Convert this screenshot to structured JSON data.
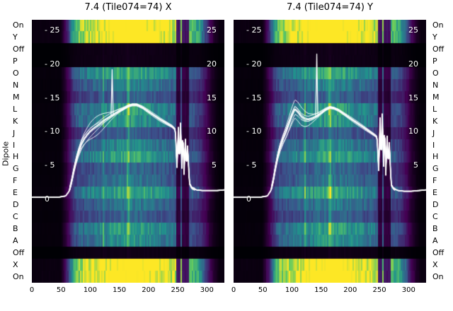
{
  "chart_data": {
    "type": "heatmap+line",
    "ylabel": "Dipole",
    "x_range": [
      0,
      330
    ],
    "x_ticks": [
      0,
      50,
      100,
      150,
      200,
      250,
      300
    ],
    "inner_axis": {
      "left_ticks": [
        25,
        20,
        15,
        10,
        5,
        0
      ],
      "right_ticks": [
        25,
        20,
        15,
        10,
        5
      ],
      "range": [
        0,
        27
      ]
    },
    "rows": [
      {
        "label": "On",
        "kind": "bright"
      },
      {
        "label": "Y",
        "kind": "bright"
      },
      {
        "label": "Off",
        "kind": "dark"
      },
      {
        "label": "P",
        "kind": "dark"
      },
      {
        "label": "O",
        "kind": "active"
      },
      {
        "label": "N",
        "kind": "active"
      },
      {
        "label": "M",
        "kind": "active"
      },
      {
        "label": "L",
        "kind": "active"
      },
      {
        "label": "K",
        "kind": "active"
      },
      {
        "label": "J",
        "kind": "active"
      },
      {
        "label": "I",
        "kind": "active"
      },
      {
        "label": "H",
        "kind": "active"
      },
      {
        "label": "G",
        "kind": "active"
      },
      {
        "label": "F",
        "kind": "active"
      },
      {
        "label": "E",
        "kind": "active"
      },
      {
        "label": "D",
        "kind": "active"
      },
      {
        "label": "C",
        "kind": "active"
      },
      {
        "label": "B",
        "kind": "active"
      },
      {
        "label": "A",
        "kind": "active"
      },
      {
        "label": "Off",
        "kind": "dark"
      },
      {
        "label": "X",
        "kind": "bright"
      },
      {
        "label": "On",
        "kind": "bright"
      }
    ],
    "colormap": [
      {
        "pos": 0.0,
        "color": "#000004"
      },
      {
        "pos": 0.18,
        "color": "#440154"
      },
      {
        "pos": 0.42,
        "color": "#3b528b"
      },
      {
        "pos": 0.62,
        "color": "#21918c"
      },
      {
        "pos": 0.8,
        "color": "#5ec962"
      },
      {
        "pos": 1.0,
        "color": "#fde725"
      }
    ],
    "colors": {
      "background": "#ffffff",
      "axis_text": "#000000",
      "inner_tick_text": "#ffffff",
      "line": "#ffffff"
    },
    "bg_profile": {
      "x": [
        0,
        48,
        54,
        60,
        66,
        72,
        80,
        95,
        110,
        130,
        150,
        170,
        190,
        210,
        230,
        243,
        252,
        262,
        272,
        285,
        295,
        303,
        312,
        320,
        330
      ],
      "v": [
        0.02,
        0.02,
        0.1,
        0.22,
        0.4,
        0.55,
        0.63,
        0.68,
        0.72,
        0.78,
        0.84,
        0.86,
        0.82,
        0.77,
        0.72,
        0.68,
        0.6,
        0.58,
        0.56,
        0.5,
        0.32,
        0.16,
        0.06,
        0.02,
        0.02
      ]
    },
    "dark_stripes": [
      {
        "x": 248,
        "w": 2.0
      },
      {
        "x": 253,
        "w": 1.5
      },
      {
        "x": 258,
        "w": 2.0
      },
      {
        "x": 263,
        "w": 1.5
      },
      {
        "x": 267,
        "w": 1.5
      }
    ],
    "dark_stripes_factor": 0.3,
    "bright_stripes": [
      {
        "x": 122,
        "w": 1.5
      },
      {
        "x": 164,
        "w": 2.0
      }
    ],
    "bright_stripes_factor": 1.3,
    "panels": [
      {
        "title": "7.4 (Tile074=74) X",
        "line": {
          "x": [
            0,
            45,
            58,
            64,
            68,
            72,
            76,
            80,
            85,
            90,
            95,
            100,
            107,
            115,
            123,
            130,
            137,
            144,
            150,
            157,
            165,
            172,
            180,
            190,
            200,
            210,
            220,
            230,
            240,
            246,
            249,
            251,
            253,
            255,
            257,
            259,
            261,
            263,
            265,
            267,
            270,
            274,
            282,
            292,
            305,
            318,
            330
          ],
          "v": [
            0.3,
            0.3,
            0.5,
            1.2,
            2.6,
            4.3,
            5.8,
            7.0,
            8.2,
            9.0,
            9.6,
            10.1,
            10.6,
            11.1,
            11.6,
            12.0,
            12.4,
            12.8,
            13.1,
            13.4,
            13.8,
            14.0,
            14.0,
            13.6,
            13.0,
            12.4,
            11.8,
            11.3,
            10.8,
            10.3,
            4.2,
            11.0,
            4.8,
            12.0,
            4.0,
            10.5,
            3.2,
            9.5,
            4.5,
            8.0,
            2.4,
            1.7,
            1.4,
            1.3,
            1.3,
            1.3,
            1.4
          ]
        },
        "spikes": [
          {
            "x": 137,
            "v": 19.2
          }
        ]
      },
      {
        "title": "7.4 (Tile074=74) Y",
        "line": {
          "x": [
            0,
            45,
            58,
            64,
            68,
            72,
            76,
            80,
            85,
            90,
            95,
            100,
            105,
            110,
            116,
            122,
            128,
            135,
            142,
            150,
            158,
            165,
            172,
            180,
            190,
            200,
            210,
            220,
            230,
            240,
            246,
            249,
            251,
            253,
            255,
            257,
            259,
            261,
            263,
            265,
            267,
            270,
            274,
            282,
            292,
            305,
            318,
            330
          ],
          "v": [
            0.3,
            0.3,
            0.5,
            1.3,
            2.8,
            4.8,
            6.5,
            7.8,
            9.0,
            10.0,
            11.2,
            12.4,
            13.4,
            13.0,
            12.3,
            11.9,
            11.8,
            12.0,
            12.3,
            12.8,
            13.3,
            13.6,
            13.5,
            13.2,
            12.6,
            12.0,
            11.4,
            10.8,
            10.2,
            9.6,
            9.2,
            3.8,
            12.5,
            5.0,
            13.5,
            4.2,
            11.5,
            3.0,
            10.0,
            4.8,
            8.5,
            2.2,
            1.6,
            1.3,
            1.2,
            1.2,
            1.3,
            1.4
          ]
        },
        "spikes": [
          {
            "x": 142,
            "v": 21.5
          }
        ]
      }
    ]
  }
}
